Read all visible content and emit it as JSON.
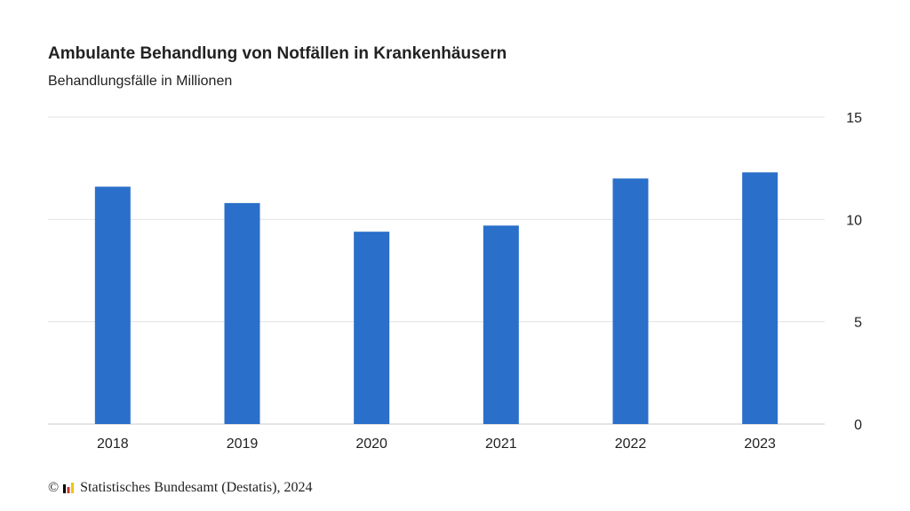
{
  "chart_data": {
    "type": "bar",
    "title": "Ambulante Behandlung von Notfällen in Krankenhäusern",
    "subtitle": "Behandlungsfälle in Millionen",
    "xlabel": "",
    "ylabel": "",
    "categories": [
      "2018",
      "2019",
      "2020",
      "2021",
      "2022",
      "2023"
    ],
    "values": [
      11.6,
      10.8,
      9.4,
      9.7,
      12.0,
      12.3
    ],
    "ylim": [
      0,
      15
    ],
    "yticks": [
      "0",
      "5",
      "10",
      "15"
    ],
    "y_axis_side": "right",
    "grid": true,
    "bar_color": "#2a6fc9",
    "grid_color": "#e3e3e3",
    "axis_color": "#c9c9c9"
  },
  "footer": {
    "copyright_symbol": "©",
    "source": "Statistisches Bundesamt (Destatis), 2024",
    "logo_colors": [
      "#000000",
      "#c0392b",
      "#f1c40f"
    ]
  }
}
